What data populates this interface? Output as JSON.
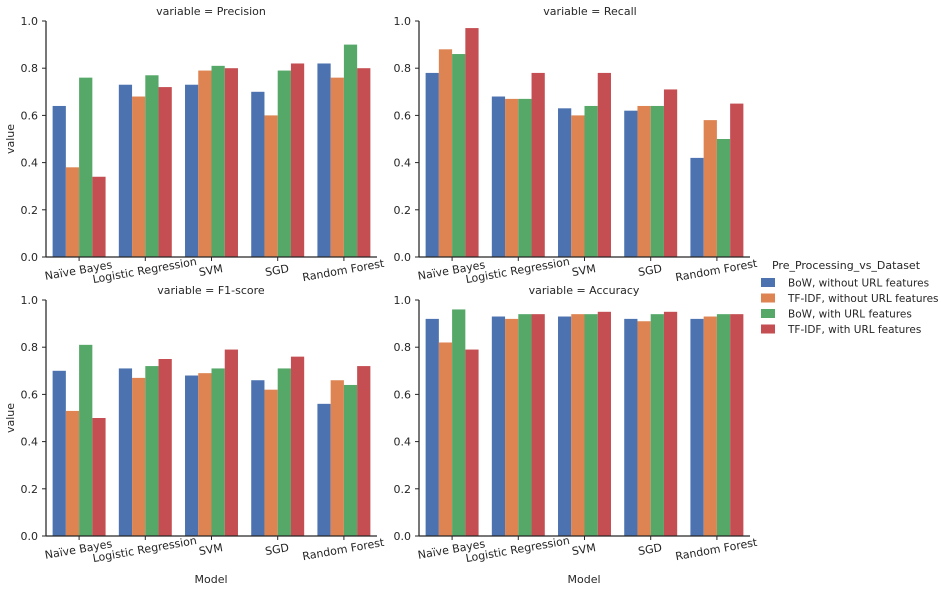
{
  "chart_data": {
    "type": "bar",
    "categories": [
      "Naïve Bayes",
      "Logistic Regression",
      "SVM",
      "SGD",
      "Random Forest"
    ],
    "hue_labels": [
      "BoW, without URL features",
      "TF-IDF, without URL features",
      "BoW, with URL features",
      "TF-IDF, with URL features"
    ],
    "colors": [
      "#4c72b0",
      "#dd8452",
      "#55a868",
      "#c44e52"
    ],
    "ylabel": "value",
    "xlabel": "Model",
    "ylim": [
      0,
      1.0
    ],
    "yticks": [
      "0.0",
      "0.2",
      "0.4",
      "0.6",
      "0.8",
      "1.0"
    ],
    "legend": {
      "title": "Pre_Processing_vs_Dataset",
      "position": "right"
    },
    "panels": [
      {
        "title": "variable = Precision",
        "series": [
          {
            "name": "BoW, without URL features",
            "values": [
              0.64,
              0.73,
              0.73,
              0.7,
              0.82
            ]
          },
          {
            "name": "TF-IDF, without URL features",
            "values": [
              0.38,
              0.68,
              0.79,
              0.6,
              0.76
            ]
          },
          {
            "name": "BoW, with URL features",
            "values": [
              0.76,
              0.77,
              0.81,
              0.79,
              0.9
            ]
          },
          {
            "name": "TF-IDF, with URL features",
            "values": [
              0.34,
              0.72,
              0.8,
              0.82,
              0.8
            ]
          }
        ]
      },
      {
        "title": "variable = Recall",
        "series": [
          {
            "name": "BoW, without URL features",
            "values": [
              0.78,
              0.68,
              0.63,
              0.62,
              0.42
            ]
          },
          {
            "name": "TF-IDF, without URL features",
            "values": [
              0.88,
              0.67,
              0.6,
              0.64,
              0.58
            ]
          },
          {
            "name": "BoW, with URL features",
            "values": [
              0.86,
              0.67,
              0.64,
              0.64,
              0.5
            ]
          },
          {
            "name": "TF-IDF, with URL features",
            "values": [
              0.97,
              0.78,
              0.78,
              0.71,
              0.65
            ]
          }
        ]
      },
      {
        "title": "variable = F1-score",
        "series": [
          {
            "name": "BoW, without URL features",
            "values": [
              0.7,
              0.71,
              0.68,
              0.66,
              0.56
            ]
          },
          {
            "name": "TF-IDF, without URL features",
            "values": [
              0.53,
              0.67,
              0.69,
              0.62,
              0.66
            ]
          },
          {
            "name": "BoW, with URL features",
            "values": [
              0.81,
              0.72,
              0.71,
              0.71,
              0.64
            ]
          },
          {
            "name": "TF-IDF, with URL features",
            "values": [
              0.5,
              0.75,
              0.79,
              0.76,
              0.72
            ]
          }
        ]
      },
      {
        "title": "variable = Accuracy",
        "series": [
          {
            "name": "BoW, without URL features",
            "values": [
              0.92,
              0.93,
              0.93,
              0.92,
              0.92
            ]
          },
          {
            "name": "TF-IDF, without URL features",
            "values": [
              0.82,
              0.92,
              0.94,
              0.91,
              0.93
            ]
          },
          {
            "name": "BoW, with URL features",
            "values": [
              0.96,
              0.94,
              0.94,
              0.94,
              0.94
            ]
          },
          {
            "name": "TF-IDF, with URL features",
            "values": [
              0.79,
              0.94,
              0.95,
              0.95,
              0.94
            ]
          }
        ]
      }
    ]
  }
}
